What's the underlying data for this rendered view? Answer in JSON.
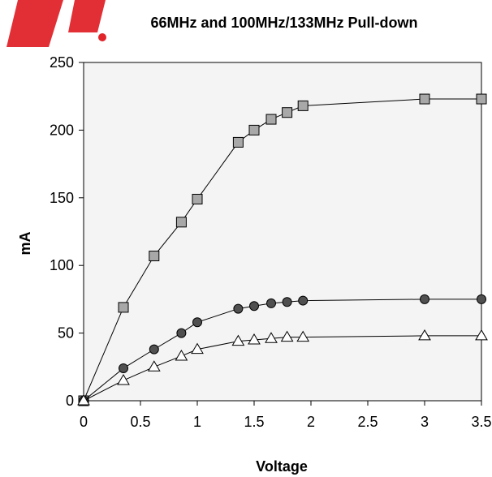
{
  "chart_data": {
    "type": "line",
    "title": "66MHz and 100MHz/133MHz Pull-down",
    "xlabel": "Voltage",
    "ylabel": "mA",
    "xlim": [
      0,
      3.5
    ],
    "ylim": [
      0,
      250
    ],
    "x_ticks": [
      "0",
      "0.5",
      "1",
      "1.5",
      "2",
      "2.5",
      "3",
      "3.5"
    ],
    "y_ticks": [
      "0",
      "50",
      "100",
      "150",
      "200",
      "250"
    ],
    "grid": false,
    "series": [
      {
        "marker": "square",
        "color": "#a8a8a8",
        "x": [
          0,
          0.35,
          0.62,
          0.86,
          1.0,
          1.36,
          1.5,
          1.65,
          1.79,
          1.93,
          3.0,
          3.5
        ],
        "y": [
          0,
          69,
          107,
          132,
          149,
          191,
          200,
          208,
          213,
          218,
          223,
          223
        ]
      },
      {
        "marker": "circle",
        "color": "#505050",
        "x": [
          0,
          0.35,
          0.62,
          0.86,
          1.0,
          1.36,
          1.5,
          1.65,
          1.79,
          1.93,
          3.0,
          3.5
        ],
        "y": [
          0,
          24,
          38,
          50,
          58,
          68,
          70,
          72,
          73,
          74,
          75,
          75
        ]
      },
      {
        "marker": "triangle",
        "color": "#ffffff",
        "x": [
          0,
          0.35,
          0.62,
          0.86,
          1.0,
          1.36,
          1.5,
          1.65,
          1.79,
          1.93,
          3.0,
          3.5
        ],
        "y": [
          0,
          15,
          25,
          33,
          38,
          44,
          45,
          46,
          47,
          47,
          48,
          48
        ]
      }
    ],
    "plot_background": "#f4f4f4"
  }
}
